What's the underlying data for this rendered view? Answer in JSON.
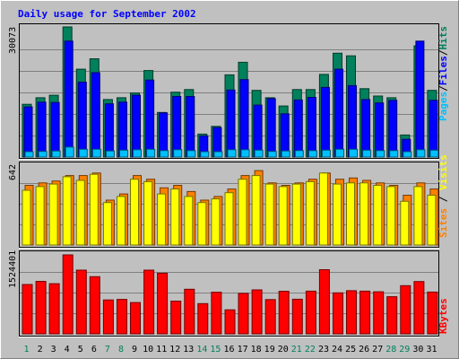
{
  "chart_data": {
    "type": "bar",
    "title": "Daily usage for September 2002",
    "categories": [
      "1",
      "2",
      "3",
      "4",
      "5",
      "6",
      "7",
      "8",
      "9",
      "10",
      "11",
      "12",
      "13",
      "14",
      "15",
      "16",
      "17",
      "18",
      "19",
      "20",
      "21",
      "22",
      "23",
      "24",
      "25",
      "26",
      "27",
      "28",
      "29",
      "30",
      "31"
    ],
    "weekend_days": [
      "1",
      "7",
      "8",
      "14",
      "15",
      "21",
      "22",
      "28",
      "29"
    ],
    "colors": {
      "hits": "#00805c",
      "files": "#0000ff",
      "pages": "#00c0ff",
      "visits": "#ffff00",
      "sites": "#ff8000",
      "kbytes": "#ff0000",
      "title": "#0000ff",
      "weekend_label": "#00805c",
      "weekday_label": "#000000",
      "background": "#c0c0c0"
    },
    "panels": [
      {
        "id": "hits-files-pages",
        "ymax_label": "30073",
        "ylim": [
          0,
          30073
        ],
        "side_labels": [
          {
            "text": "Pages",
            "color": "#00c0ff"
          },
          {
            "text": "/",
            "color": "#000000"
          },
          {
            "text": "Files",
            "color": "#0000ff"
          },
          {
            "text": "/",
            "color": "#000000"
          },
          {
            "text": "Hits",
            "color": "#00805c"
          }
        ],
        "series": [
          {
            "key": "hits",
            "values": [
              12200,
              13700,
              14300,
              30073,
              20300,
              22700,
              13300,
              13700,
              14800,
              20000,
              10300,
              15000,
              15600,
              5300,
              7100,
              19000,
              21900,
              15400,
              13700,
              11800,
              15600,
              15600,
              19100,
              24000,
              23400,
              15800,
              14100,
              13700,
              5100,
              25700,
              15400
            ]
          },
          {
            "key": "files",
            "values": [
              11600,
              12700,
              12600,
              26800,
              17300,
              19500,
              12300,
              12700,
              14300,
              17800,
              10200,
              14000,
              14000,
              4900,
              6800,
              15500,
              17900,
              12000,
              13500,
              10000,
              13200,
              13800,
              16100,
              20300,
              16500,
              13300,
              12500,
              13100,
              4100,
              26800,
              13100
            ]
          },
          {
            "key": "pages",
            "values": [
              1200,
              1300,
              1400,
              2300,
              1800,
              1800,
              1400,
              1600,
              1700,
              1800,
              1500,
              1700,
              1500,
              900,
              1200,
              1700,
              1700,
              1600,
              1300,
              1400,
              1500,
              1500,
              1600,
              1800,
              1800,
              1600,
              1500,
              1500,
              1200,
              1700,
              1600
            ]
          }
        ]
      },
      {
        "id": "visits-sites",
        "ymax_label": "642",
        "ylim": [
          0,
          642
        ],
        "side_labels": [
          {
            "text": "Sites",
            "color": "#ff8000"
          },
          {
            "text": " / ",
            "color": "#000000"
          },
          {
            "text": "Visits",
            "color": "#ffff00"
          }
        ],
        "series": [
          {
            "key": "sites",
            "values": [
              485,
              505,
              520,
              565,
              565,
              585,
              365,
              415,
              565,
              535,
              465,
              485,
              435,
              365,
              395,
              455,
              565,
              605,
              505,
              485,
              505,
              535,
              585,
              535,
              545,
              525,
              505,
              485,
              405,
              505,
              455
            ]
          },
          {
            "key": "visits",
            "values": [
              445,
              475,
              495,
              555,
              525,
              575,
              345,
              395,
              535,
              515,
              415,
              455,
              395,
              345,
              375,
              425,
              535,
              565,
              495,
              475,
              495,
              515,
              585,
              495,
              505,
              505,
              485,
              475,
              355,
              475,
              405
            ]
          }
        ]
      },
      {
        "id": "kbytes",
        "ymax_label": "1524401",
        "ylim": [
          0,
          1524401
        ],
        "side_labels": [
          {
            "text": "KBytes",
            "color": "#ff0000"
          }
        ],
        "series": [
          {
            "key": "kbytes",
            "values": [
              952000,
              1013000,
              968000,
              1524401,
              1230000,
              1103000,
              655000,
              666000,
              605000,
              1230000,
              1171000,
              633000,
              861000,
              583000,
              804000,
              465000,
              781000,
              848000,
              661000,
              822000,
              669000,
              825000,
              1238000,
              791000,
              834000,
              825000,
              813000,
              718000,
              931000,
              1010000,
              807000
            ]
          }
        ]
      }
    ],
    "ymax_labels": [
      "30073",
      "642",
      "1524401"
    ]
  }
}
